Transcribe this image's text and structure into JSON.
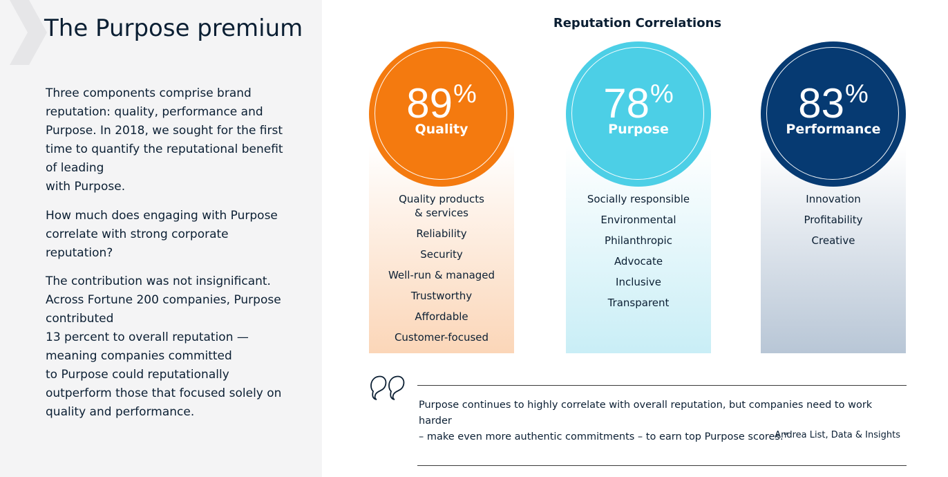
{
  "left": {
    "title": "The Purpose premium",
    "paragraphs": [
      "Three components comprise brand\nreputation: quality, performance and\nPurpose. In 2018, we sought for the first\ntime to quantify the reputational benefit\nof leading\nwith Purpose.",
      "How much does engaging with Purpose\ncorrelate with strong corporate\nreputation?",
      "The contribution was not insignificant.\nAcross Fortune 200 companies, Purpose\ncontributed\n13 percent to overall reputation —\nmeaning companies committed\nto Purpose could reputationally\noutperform those that focused solely on\nquality and performance."
    ]
  },
  "correlations": {
    "title": "Reputation Correlations",
    "columns": [
      {
        "value": "89",
        "sign": "%",
        "label": "Quality",
        "color": "#f47a0f",
        "items": [
          "Quality products\n& services",
          "Reliability",
          "Security",
          "Well-run & managed",
          "Trustworthy",
          "Affordable",
          "Customer-focused"
        ]
      },
      {
        "value": "78",
        "sign": "%",
        "label": "Purpose",
        "color": "#4ccfe6",
        "items": [
          "Socially responsible",
          "Environmental",
          "Philanthropic",
          "Advocate",
          "Inclusive",
          "Transparent"
        ]
      },
      {
        "value": "83",
        "sign": "%",
        "label": "Performance",
        "color": "#063a72",
        "items": [
          "Innovation",
          "Profitability",
          "Creative"
        ]
      }
    ]
  },
  "quote": {
    "icon": "quote-marks-icon",
    "text": "Purpose continues to highly correlate with overall reputation, but companies need to work harder\n– make even more authentic commitments – to earn top Purpose scores.”",
    "author": "Andrea List, Data & Insights"
  }
}
